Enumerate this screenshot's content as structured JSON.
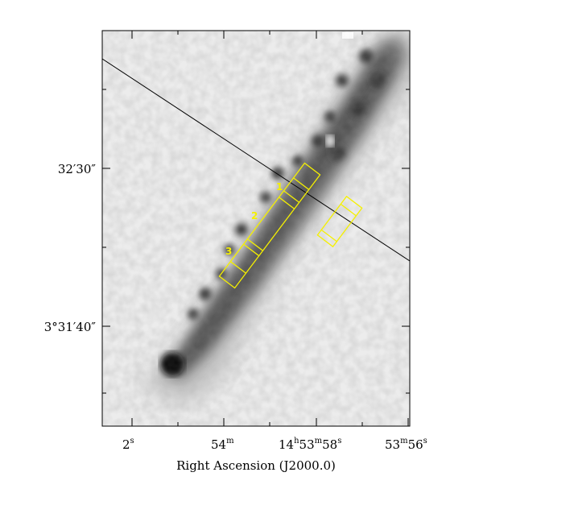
{
  "figure": {
    "x_axis_title": "Right Ascension (J2000.0)",
    "ra_ticks": [
      {
        "main": "2",
        "sup": "s"
      },
      {
        "main": "54",
        "sup": "m"
      },
      {
        "main": "14",
        "sup": "h",
        "main2": "53",
        "sup2": "m",
        "main3": "58",
        "sup3": "s"
      },
      {
        "main": "53",
        "sup": "m",
        "main2": "56",
        "sup2": "s"
      }
    ],
    "dec_ticks": [
      {
        "text": "32′30″"
      },
      {
        "text": "3°31′40″"
      }
    ],
    "slit_labels": [
      "1",
      "2",
      "3"
    ],
    "colors": {
      "slit": "#f5f000",
      "cut_line": "#000000",
      "frame": "#000000"
    },
    "image_description_elements": [
      "greyscale-sky-image",
      "elongated-dark-source",
      "bright-core"
    ]
  }
}
